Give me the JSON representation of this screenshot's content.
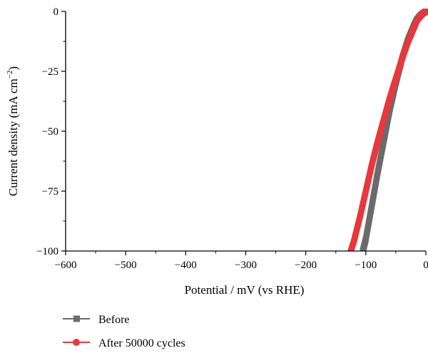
{
  "chart_data": {
    "type": "line",
    "xlabel": "Potential / mV (vs RHE)",
    "ylabel_main": "Current density (mA cm",
    "ylabel_sup": "−2",
    "ylabel_tail": ")",
    "xlim": [
      -600,
      0
    ],
    "ylim": [
      -100,
      0
    ],
    "xticks": [
      -600,
      -500,
      -400,
      -300,
      -200,
      -100,
      0
    ],
    "xtick_labels": [
      "−600",
      "−500",
      "−400",
      "−300",
      "−200",
      "−100",
      "0"
    ],
    "yticks": [
      0,
      -25,
      -50,
      -75,
      -100
    ],
    "ytick_labels": [
      "0",
      "−25",
      "−50",
      "−75",
      "−100"
    ],
    "grid": false,
    "legend_position": "bottom-left, below plot",
    "series": [
      {
        "name": "Before",
        "color": "#6b6b6b",
        "marker": "square",
        "x": [
          0,
          -2,
          -5,
          -8,
          -10,
          -15,
          -20,
          -30,
          -40,
          -50,
          -60,
          -70,
          -80,
          -90,
          -100,
          -105
        ],
        "y": [
          0,
          -0.3,
          -0.8,
          -1.5,
          -2.0,
          -3.5,
          -6,
          -12,
          -20,
          -30,
          -41,
          -54,
          -67,
          -81,
          -95,
          -100
        ]
      },
      {
        "name": "After 50000 cycles",
        "color": "#e8383d",
        "marker": "circle",
        "x": [
          0,
          -2,
          -5,
          -8,
          -10,
          -15,
          -20,
          -30,
          -40,
          -50,
          -60,
          -70,
          -80,
          -90,
          -100,
          -110,
          -120,
          -125
        ],
        "y": [
          0,
          -0.3,
          -0.8,
          -1.5,
          -2.2,
          -4,
          -7,
          -13,
          -20,
          -28,
          -36,
          -45,
          -54,
          -64,
          -75,
          -86,
          -96,
          -100
        ]
      }
    ]
  }
}
